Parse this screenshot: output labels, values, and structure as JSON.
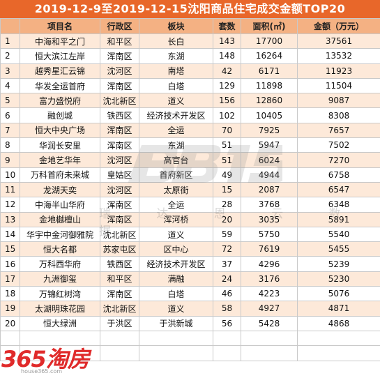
{
  "title": "2019-12-9至2019-12-15沈阳商品住宅成交金额TOP20",
  "headers": {
    "rank": "",
    "project": "项目名",
    "district": "行政区",
    "block": "板块",
    "units": "套数",
    "area": "面积(㎡)",
    "amount": "金额（万元）"
  },
  "rows": [
    {
      "rank": "1",
      "project": "中海和平之门",
      "district": "和平区",
      "block": "长白",
      "units": "143",
      "area": "17700",
      "amount": "37561"
    },
    {
      "rank": "2",
      "project": "恒大滨江左岸",
      "district": "浑南区",
      "block": "东湖",
      "units": "148",
      "area": "16264",
      "amount": "13532"
    },
    {
      "rank": "3",
      "project": "越秀星汇云锦",
      "district": "沈河区",
      "block": "南塔",
      "units": "42",
      "area": "6171",
      "amount": "11923"
    },
    {
      "rank": "4",
      "project": "华发全运首府",
      "district": "浑南区",
      "block": "白塔",
      "units": "129",
      "area": "11898",
      "amount": "11504"
    },
    {
      "rank": "5",
      "project": "富力盛悦府",
      "district": "沈北新区",
      "block": "道义",
      "units": "156",
      "area": "12860",
      "amount": "9087"
    },
    {
      "rank": "6",
      "project": "融创城",
      "district": "铁西区",
      "block": "经济技术开发区",
      "units": "102",
      "area": "10405",
      "amount": "8308"
    },
    {
      "rank": "7",
      "project": "恒大中央广场",
      "district": "浑南区",
      "block": "全运",
      "units": "70",
      "area": "7925",
      "amount": "7657"
    },
    {
      "rank": "8",
      "project": "华润长安里",
      "district": "浑南区",
      "block": "东湖",
      "units": "51",
      "area": "5947",
      "amount": "7502"
    },
    {
      "rank": "9",
      "project": "金地艺华年",
      "district": "沈河区",
      "block": "高官台",
      "units": "51",
      "area": "6024",
      "amount": "7270"
    },
    {
      "rank": "10",
      "project": "万科首府未来城",
      "district": "皇姑区",
      "block": "首府新区",
      "units": "49",
      "area": "4944",
      "amount": "6758"
    },
    {
      "rank": "11",
      "project": "龙湖天奕",
      "district": "沈河区",
      "block": "太原街",
      "units": "15",
      "area": "2087",
      "amount": "6547"
    },
    {
      "rank": "12",
      "project": "中海半山华府",
      "district": "浑南区",
      "block": "全运",
      "units": "28",
      "area": "3768",
      "amount": "6348"
    },
    {
      "rank": "13",
      "project": "金地樾檀山",
      "district": "浑南区",
      "block": "浑河桥",
      "units": "20",
      "area": "3035",
      "amount": "5891"
    },
    {
      "rank": "14",
      "project": "华宇中金河御雅院",
      "district": "沈北新区",
      "block": "道义",
      "units": "59",
      "area": "5750",
      "amount": "5540"
    },
    {
      "rank": "15",
      "project": "恒大名都",
      "district": "苏家屯区",
      "block": "区中心",
      "units": "72",
      "area": "7619",
      "amount": "5455"
    },
    {
      "rank": "16",
      "project": "万科西华府",
      "district": "铁西区",
      "block": "经济技术开发区",
      "units": "37",
      "area": "4296",
      "amount": "5239"
    },
    {
      "rank": "17",
      "project": "九洲御玺",
      "district": "和平区",
      "block": "满融",
      "units": "24",
      "area": "3176",
      "amount": "5230"
    },
    {
      "rank": "18",
      "project": "万锦红树湾",
      "district": "浑南区",
      "block": "白塔",
      "units": "46",
      "area": "4223",
      "amount": "5076"
    },
    {
      "rank": "19",
      "project": "太湖明珠花园",
      "district": "沈北新区",
      "block": "道义",
      "units": "58",
      "area": "4927",
      "amount": "4871"
    },
    {
      "rank": "20",
      "project": "恒大绿洲",
      "district": "于洪区",
      "block": "于洪新城",
      "units": "56",
      "area": "5428",
      "amount": "4868"
    }
  ],
  "watermark": {
    "text": "瑞 达 恩 云 数 据",
    "color": "#c8c8c8"
  },
  "logo": {
    "text": "365淘房",
    "url": "house365.com",
    "color": "#e02a2a"
  },
  "colors": {
    "title_bg": "#e8672a",
    "header_bg": "#f4b183",
    "stripe": "#fde9d9"
  }
}
